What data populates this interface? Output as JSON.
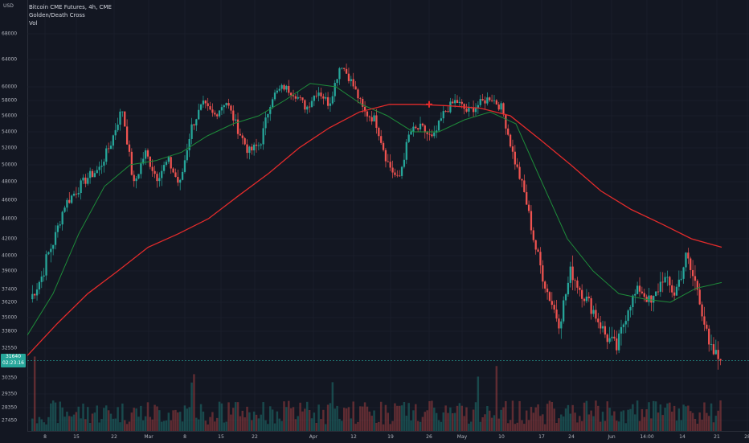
{
  "header": {
    "currency": "USD",
    "title": "Bitcoin CME Futures, 4h, CME",
    "indicator_1": "Golden/Death Cross",
    "indicator_2": "Vol"
  },
  "last_price": {
    "value": "31640",
    "countdown": "02:23:16"
  },
  "colors": {
    "up": "#26a69a",
    "down": "#ef5350",
    "ma_fast": "#1e8c3a",
    "ma_slow": "#e32b2b",
    "background": "#131722",
    "grid": "#1f2330"
  },
  "chart_data": {
    "type": "line",
    "y_ticks": [
      68000,
      64000,
      60000,
      58000,
      56000,
      54000,
      52000,
      50000,
      48000,
      46000,
      44000,
      42000,
      40000,
      39000,
      37400,
      36200,
      35000,
      33800,
      32550,
      30350,
      29350,
      28350,
      27450
    ],
    "x_ticks": [
      "8",
      "15",
      "22",
      "Mar",
      "8",
      "15",
      "22",
      "Apr",
      "12",
      "19",
      "26",
      "May",
      "10",
      "17",
      "24",
      "Jun",
      "14:00",
      "14",
      "21",
      "28"
    ],
    "price_series": {
      "name": "",
      "values": [
        36500,
        38500,
        41500,
        45500,
        47000,
        48500,
        49500,
        52500,
        57000,
        47500,
        51500,
        48500,
        50500,
        47500,
        54500,
        57500,
        56000,
        58000,
        54500,
        51500,
        52500,
        58500,
        60000,
        59000,
        57000,
        59500,
        57500,
        63500,
        60500,
        56500,
        55500,
        50500,
        48000,
        54000,
        54500,
        53000,
        56500,
        58000,
        56500,
        57500,
        58500,
        57000,
        51000,
        46500,
        40500,
        37000,
        34500,
        39000,
        37000,
        35500,
        33500,
        32500,
        36000,
        37500,
        36000,
        38500,
        37000,
        40000,
        37500,
        32500,
        31640
      ]
    },
    "ma_fast": {
      "name": "",
      "values": [
        33500,
        37000,
        42500,
        47500,
        50000,
        50500,
        51500,
        53500,
        55000,
        56000,
        58000,
        60500,
        60000,
        57500,
        56000,
        54000,
        54000,
        55500,
        56500,
        55000,
        48000,
        42000,
        39000,
        37000,
        36500,
        36200,
        37500,
        38000
      ]
    },
    "ma_slow": {
      "name": "",
      "values": [
        32000,
        34500,
        37000,
        39000,
        41000,
        42500,
        44000,
        46500,
        49000,
        52000,
        54500,
        56500,
        57500,
        57500,
        57300,
        57000,
        56000,
        53000,
        50000,
        47000,
        45000,
        43500,
        42000,
        41000
      ]
    },
    "cross_marker": {
      "type": "death-cross",
      "value": 57500
    },
    "volume": {
      "name": ""
    }
  }
}
